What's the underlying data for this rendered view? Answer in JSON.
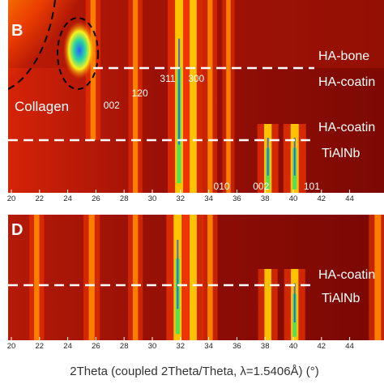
{
  "chart_data": [
    {
      "type": "heatmap",
      "panel_label": "B",
      "x_ticks": [
        20,
        22,
        24,
        26,
        28,
        30,
        32,
        34,
        36,
        38,
        40,
        42,
        44
      ],
      "xlim": [
        20,
        46.5
      ],
      "layer_labels": [
        "HA-bone",
        "HA-coatin",
        "HA-coatin",
        "TiAlNb"
      ],
      "region_label": "Collagen",
      "peak_labels": [
        {
          "text": "002",
          "x": 27.0
        },
        {
          "text": "120",
          "x": 29.0
        },
        {
          "text": "311",
          "x": 31.0
        },
        {
          "text": "300",
          "x": 33.0
        },
        {
          "text": "010",
          "x": 34.8
        },
        {
          "text": "002",
          "x": 37.6
        },
        {
          "text": "101",
          "x": 41.2
        }
      ],
      "peaks": [
        {
          "x": 25.8,
          "intensity": 0.5,
          "zone": "upper"
        },
        {
          "x": 28.8,
          "intensity": 0.45,
          "zone": "all"
        },
        {
          "x": 31.9,
          "intensity": 1.0,
          "zone": "all"
        },
        {
          "x": 32.9,
          "intensity": 0.8,
          "zone": "all"
        },
        {
          "x": 34.1,
          "intensity": 0.45,
          "zone": "all"
        },
        {
          "x": 35.4,
          "intensity": 0.35,
          "zone": "all"
        },
        {
          "x": 38.2,
          "intensity": 0.9,
          "zone": "lower"
        },
        {
          "x": 40.1,
          "intensity": 1.0,
          "zone": "lower"
        }
      ]
    },
    {
      "type": "heatmap",
      "panel_label": "D",
      "x_ticks": [
        20,
        22,
        24,
        26,
        28,
        30,
        32,
        34,
        36,
        38,
        40,
        42,
        44
      ],
      "xlim": [
        20,
        46.5
      ],
      "layer_labels": [
        "HA-coatin",
        "TiAlNb"
      ],
      "peaks": [
        {
          "x": 21.8,
          "intensity": 0.5,
          "zone": "all"
        },
        {
          "x": 25.7,
          "intensity": 0.6,
          "zone": "all"
        },
        {
          "x": 28.8,
          "intensity": 0.5,
          "zone": "all"
        },
        {
          "x": 31.8,
          "intensity": 1.0,
          "zone": "all"
        },
        {
          "x": 32.9,
          "intensity": 0.85,
          "zone": "all"
        },
        {
          "x": 34.1,
          "intensity": 0.5,
          "zone": "all"
        },
        {
          "x": 38.2,
          "intensity": 0.8,
          "zone": "lower"
        },
        {
          "x": 40.1,
          "intensity": 0.9,
          "zone": "lower"
        },
        {
          "x": 46.0,
          "intensity": 0.7,
          "zone": "all"
        }
      ]
    }
  ],
  "xlabel": "2Theta (coupled 2Theta/Theta, λ=1.5406Å) (°)",
  "colors": {
    "background": "#8e0b05",
    "bright_line": "#ff3a00",
    "hot_line": "#ffd400",
    "peak_core": "#2ee86a",
    "peak_center": "#1a55ff",
    "divider": "#ffffff"
  }
}
